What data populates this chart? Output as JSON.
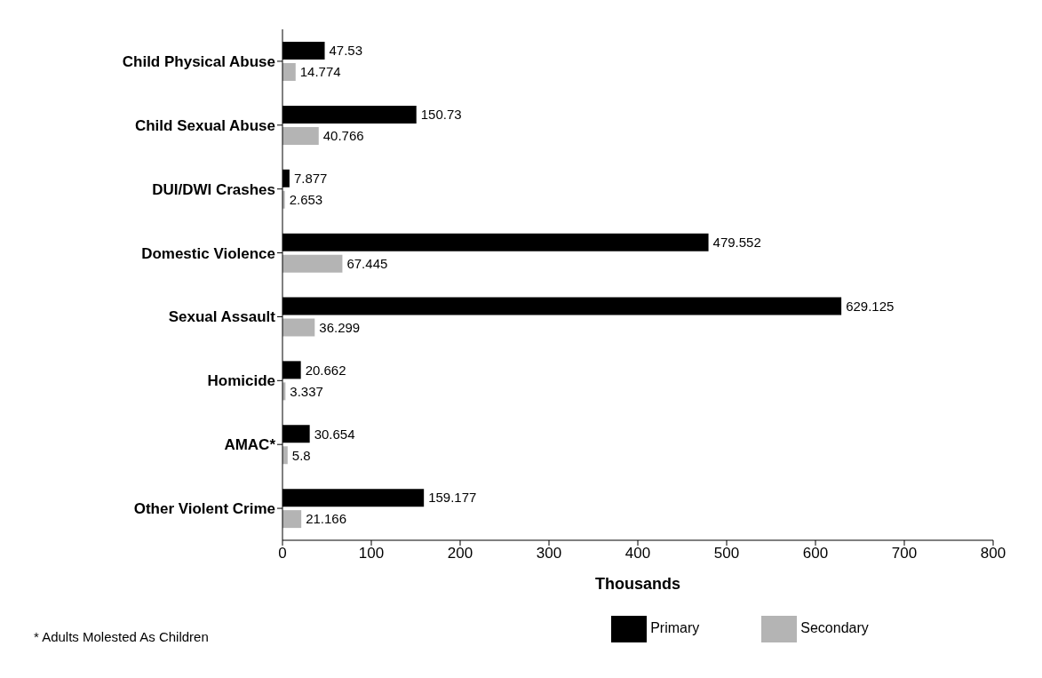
{
  "chart_data": {
    "type": "bar",
    "orientation": "horizontal",
    "xlabel": "Thousands",
    "categories": [
      "Child Physical Abuse",
      "Child Sexual Abuse",
      "DUI/DWI Crashes",
      "Domestic Violence",
      "Sexual Assault",
      "Homicide",
      "AMAC*",
      "Other Violent Crime"
    ],
    "series": [
      {
        "name": "Primary",
        "color": "#000000",
        "values": [
          47.53,
          150.73,
          7.877,
          479.552,
          629.125,
          20.662,
          30.654,
          159.177
        ]
      },
      {
        "name": "Secondary",
        "color": "#b4b4b4",
        "values": [
          14.774,
          40.766,
          2.653,
          67.445,
          36.299,
          3.337,
          5.8,
          21.166
        ]
      }
    ],
    "xlim": [
      0,
      800
    ],
    "xticks": [
      0,
      100,
      200,
      300,
      400,
      500,
      600,
      700,
      800
    ],
    "data_labels": true,
    "grid": false,
    "legend": "bottom",
    "annotations": [
      "* Adults Molested As Children"
    ]
  }
}
